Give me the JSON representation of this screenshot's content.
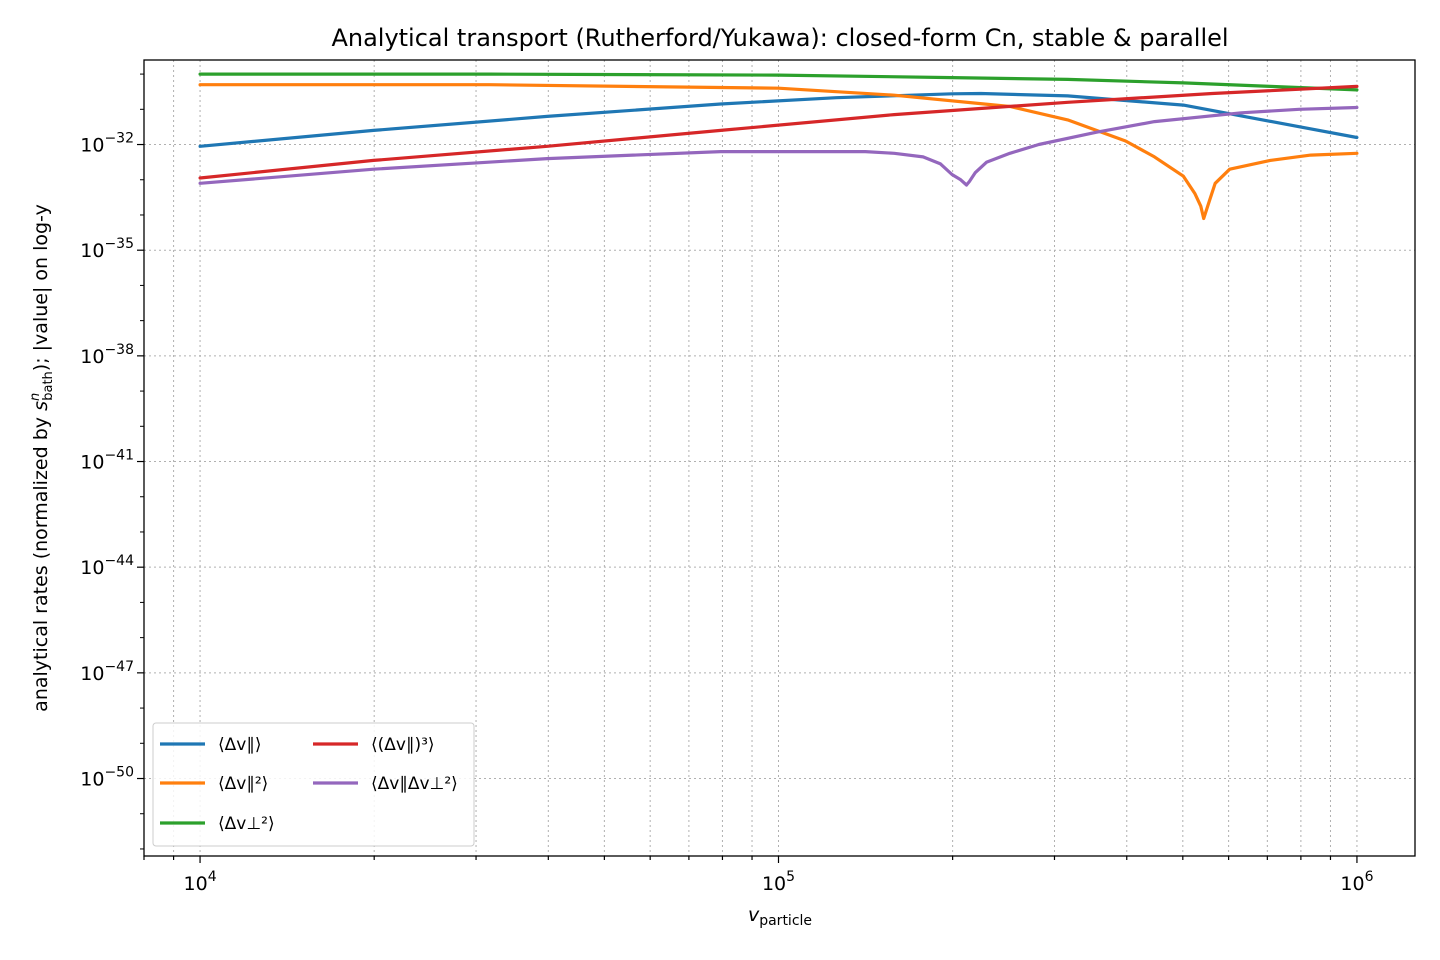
{
  "chart_data": {
    "type": "line",
    "title": "Analytical transport (Rutherford/Yukawa): closed-form Cn, stable & parallel",
    "xlabel": "v_particle",
    "xlabel_parts": {
      "main": "v",
      "sub": "particle"
    },
    "ylabel": "analytical rates (normalized by s^n_bath); |value| on log-y",
    "ylabel_parts": {
      "pre": "analytical rates (normalized by ",
      "s": "s",
      "sup": "n",
      "sub": "bath",
      "post": "); |value| on log-y"
    },
    "x_scale": "log",
    "y_scale": "log",
    "xlim": [
      8000,
      1260000
    ],
    "ylim_log10": [
      -52.2,
      -29.6
    ],
    "x_ticks": [
      {
        "value": 10000,
        "base": "10",
        "exp": "4"
      },
      {
        "value": 100000,
        "base": "10",
        "exp": "5"
      },
      {
        "value": 1000000,
        "base": "10",
        "exp": "6"
      }
    ],
    "y_ticks": [
      {
        "log10": -32,
        "base": "10",
        "exp": "−32"
      },
      {
        "log10": -35,
        "base": "10",
        "exp": "−35"
      },
      {
        "log10": -38,
        "base": "10",
        "exp": "−38"
      },
      {
        "log10": -41,
        "base": "10",
        "exp": "−41"
      },
      {
        "log10": -44,
        "base": "10",
        "exp": "−44"
      },
      {
        "log10": -47,
        "base": "10",
        "exp": "−47"
      },
      {
        "log10": -50,
        "base": "10",
        "exp": "−50"
      }
    ],
    "grid": true,
    "legend_position": "lower-left",
    "series": [
      {
        "name": "⟨Δv∥⟩",
        "color": "#1f77b4",
        "points_x_log10_y_log10": [
          [
            4.0,
            -32.05
          ],
          [
            4.3,
            -31.6
          ],
          [
            4.6,
            -31.2
          ],
          [
            4.9,
            -30.85
          ],
          [
            5.1,
            -30.67
          ],
          [
            5.3,
            -30.56
          ],
          [
            5.35,
            -30.55
          ],
          [
            5.5,
            -30.62
          ],
          [
            5.7,
            -30.88
          ],
          [
            6.0,
            -31.8
          ]
        ]
      },
      {
        "name": "⟨Δv∥²⟩",
        "color": "#ff7f0e",
        "points_x_log10_y_log10": [
          [
            4.0,
            -30.3
          ],
          [
            4.5,
            -30.3
          ],
          [
            5.0,
            -30.4
          ],
          [
            5.2,
            -30.6
          ],
          [
            5.4,
            -30.92
          ],
          [
            5.5,
            -31.3
          ],
          [
            5.6,
            -31.9
          ],
          [
            5.65,
            -32.35
          ],
          [
            5.7,
            -32.9
          ],
          [
            5.72,
            -33.4
          ],
          [
            5.73,
            -33.75
          ],
          [
            5.735,
            -34.1
          ],
          [
            5.745,
            -33.6
          ],
          [
            5.755,
            -33.1
          ],
          [
            5.78,
            -32.7
          ],
          [
            5.85,
            -32.45
          ],
          [
            5.92,
            -32.3
          ],
          [
            6.0,
            -32.25
          ]
        ]
      },
      {
        "name": "⟨Δv⊥²⟩",
        "color": "#2ca02c",
        "points_x_log10_y_log10": [
          [
            4.0,
            -30.0
          ],
          [
            4.5,
            -30.0
          ],
          [
            5.0,
            -30.03
          ],
          [
            5.3,
            -30.1
          ],
          [
            5.5,
            -30.15
          ],
          [
            5.7,
            -30.25
          ],
          [
            5.85,
            -30.35
          ],
          [
            6.0,
            -30.45
          ]
        ]
      },
      {
        "name": "⟨(Δv∥)³⟩",
        "color": "#d62728",
        "points_x_log10_y_log10": [
          [
            4.0,
            -32.95
          ],
          [
            4.3,
            -32.45
          ],
          [
            4.6,
            -32.05
          ],
          [
            4.9,
            -31.6
          ],
          [
            5.2,
            -31.15
          ],
          [
            5.5,
            -30.8
          ],
          [
            5.75,
            -30.55
          ],
          [
            6.0,
            -30.35
          ]
        ]
      },
      {
        "name": "⟨Δv∥Δv⊥²⟩",
        "color": "#9467bd",
        "points_x_log10_y_log10": [
          [
            4.0,
            -33.1
          ],
          [
            4.3,
            -32.7
          ],
          [
            4.6,
            -32.4
          ],
          [
            4.9,
            -32.2
          ],
          [
            5.05,
            -32.2
          ],
          [
            5.15,
            -32.2
          ],
          [
            5.2,
            -32.25
          ],
          [
            5.25,
            -32.35
          ],
          [
            5.28,
            -32.55
          ],
          [
            5.3,
            -32.85
          ],
          [
            5.315,
            -33.0
          ],
          [
            5.325,
            -33.15
          ],
          [
            5.33,
            -33.05
          ],
          [
            5.34,
            -32.8
          ],
          [
            5.36,
            -32.5
          ],
          [
            5.4,
            -32.25
          ],
          [
            5.45,
            -32.0
          ],
          [
            5.55,
            -31.65
          ],
          [
            5.65,
            -31.35
          ],
          [
            5.8,
            -31.1
          ],
          [
            5.9,
            -31.0
          ],
          [
            6.0,
            -30.95
          ]
        ]
      }
    ]
  }
}
